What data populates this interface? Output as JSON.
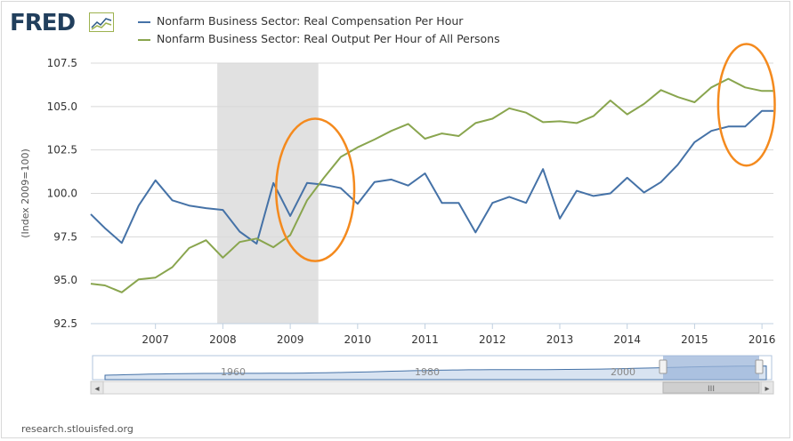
{
  "brand": {
    "logo_text": "FRED",
    "logo_icon": "line-graph-icon"
  },
  "source_credit": "research.stlouisfed.org",
  "colors": {
    "blue": "#4572a7",
    "green": "#89a54e",
    "recession": "#e1e1e1",
    "highlight": "#f48a1e",
    "navigator": "#9cb6d9"
  },
  "navigator": {
    "labels": [
      "1960",
      "1980",
      "2000"
    ],
    "scroll_left": "◂",
    "scroll_right": "▸",
    "thumb_grip": "III"
  },
  "chart_data": {
    "type": "line",
    "title": "",
    "xlabel": "",
    "ylabel": "(Index 2009=100)",
    "xlim": [
      2006.04,
      2016.17
    ],
    "ylim": [
      92.5,
      107.5
    ],
    "y_ticks": [
      92.5,
      95.0,
      97.5,
      100.0,
      102.5,
      105.0,
      107.5
    ],
    "y_tick_labels": [
      "92.5",
      "95.0",
      "97.5",
      "100.0",
      "102.5",
      "105.0",
      "107.5"
    ],
    "x_ticks": [
      2007,
      2008,
      2009,
      2010,
      2011,
      2012,
      2013,
      2014,
      2015,
      2016
    ],
    "x_tick_labels": [
      "2007",
      "2008",
      "2009",
      "2010",
      "2011",
      "2012",
      "2013",
      "2014",
      "2015",
      "2016"
    ],
    "recession": [
      2007.917,
      2009.417
    ],
    "highlight_circles": [
      {
        "x": 2009.37,
        "y": 100.2,
        "rx": 0.58,
        "ry": 4.1
      },
      {
        "x": 2015.77,
        "y": 105.1,
        "rx": 0.42,
        "ry": 3.5
      }
    ],
    "x": [
      2006.04,
      2006.25,
      2006.5,
      2006.75,
      2007.0,
      2007.25,
      2007.5,
      2007.75,
      2008.0,
      2008.25,
      2008.5,
      2008.75,
      2009.0,
      2009.25,
      2009.5,
      2009.75,
      2010.0,
      2010.25,
      2010.5,
      2010.75,
      2011.0,
      2011.25,
      2011.5,
      2011.75,
      2012.0,
      2012.25,
      2012.5,
      2012.75,
      2013.0,
      2013.25,
      2013.5,
      2013.75,
      2014.0,
      2014.25,
      2014.5,
      2014.75,
      2015.0,
      2015.25,
      2015.5,
      2015.75,
      2016.0,
      2016.17
    ],
    "series": [
      {
        "name": "Nonfarm Business Sector: Real Compensation Per Hour",
        "color": "#4572a7",
        "values": [
          98.8,
          98.0,
          97.15,
          99.3,
          100.75,
          99.6,
          99.3,
          99.15,
          99.05,
          97.8,
          97.1,
          100.6,
          98.7,
          100.6,
          100.5,
          100.3,
          99.4,
          100.65,
          100.8,
          100.45,
          101.15,
          99.45,
          99.45,
          97.75,
          99.45,
          99.8,
          99.45,
          101.4,
          98.55,
          100.15,
          99.85,
          100.0,
          100.9,
          100.05,
          100.65,
          101.65,
          102.95,
          103.6,
          103.85,
          103.85,
          104.75,
          104.75
        ]
      },
      {
        "name": "Nonfarm Business Sector: Real Output Per Hour of All Persons",
        "color": "#89a54e",
        "values": [
          94.8,
          94.7,
          94.3,
          95.05,
          95.15,
          95.75,
          96.85,
          97.3,
          96.3,
          97.2,
          97.4,
          96.9,
          97.6,
          99.6,
          100.9,
          102.1,
          102.65,
          103.1,
          103.6,
          104.0,
          103.15,
          103.45,
          103.3,
          104.05,
          104.3,
          104.9,
          104.65,
          104.1,
          104.15,
          104.05,
          104.45,
          105.35,
          104.55,
          105.15,
          105.95,
          105.55,
          105.25,
          106.1,
          106.6,
          106.1,
          105.9,
          105.9
        ]
      }
    ],
    "navigator_x_range": [
      1947,
      2016.17
    ]
  }
}
